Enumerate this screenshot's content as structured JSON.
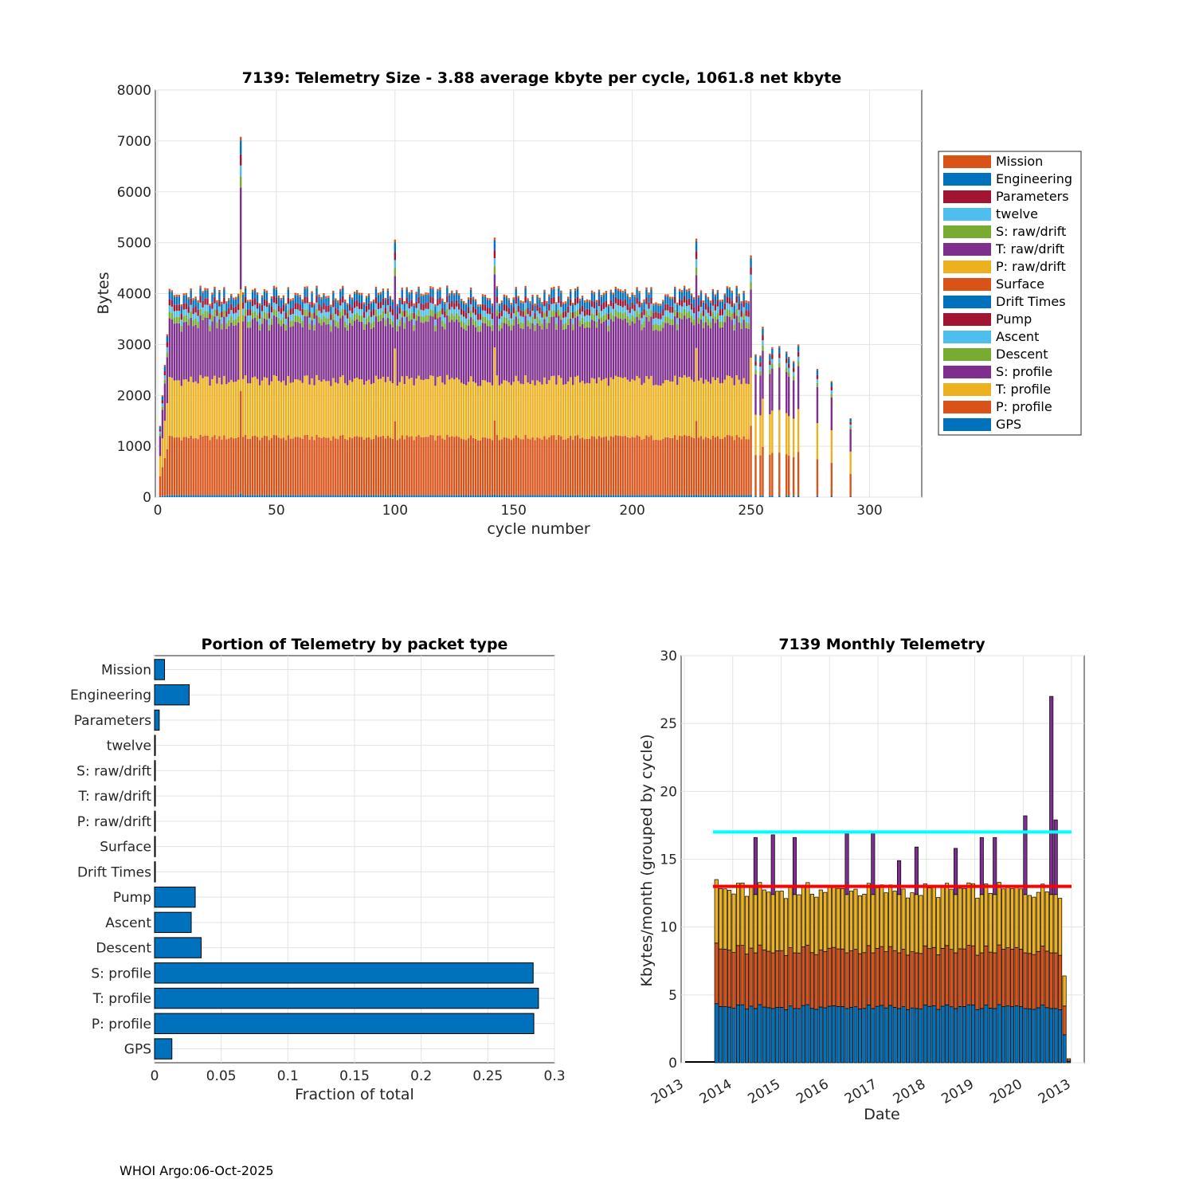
{
  "colors": {
    "Mission": "#D95319",
    "Engineering": "#0072BD",
    "Parameters": "#A2142F",
    "twelve": "#4DBEEE",
    "S: raw/drift": "#77AC30",
    "T: raw/drift": "#7E2F8E",
    "P: raw/drift": "#EDB120",
    "Surface": "#D95319",
    "Drift Times": "#0072BD",
    "Pump": "#A2142F",
    "Ascent": "#4DBEEE",
    "Descent": "#77AC30",
    "S: profile": "#7E2F8E",
    "T: profile": "#EDB120",
    "P: profile": "#D95319",
    "GPS": "#0072BD",
    "bar_fill": "#0072BD",
    "ref_cyan": "#00FFFF",
    "ref_red": "#FF0000"
  },
  "chart_data": [
    {
      "type": "bar",
      "stacked": true,
      "title": "7139: Telemetry Size - 3.88 average kbyte per cycle, 1061.8 net kbyte",
      "xlabel": "cycle number",
      "ylabel": "Bytes",
      "xlim": [
        -1,
        322
      ],
      "ylim": [
        0,
        8000
      ],
      "xticks": [
        0,
        50,
        100,
        150,
        200,
        250,
        300
      ],
      "yticks": [
        0,
        1000,
        2000,
        3000,
        4000,
        5000,
        6000,
        7000,
        8000
      ],
      "grid": true,
      "legend_position": "right",
      "legend": [
        "Mission",
        "Engineering",
        "Parameters",
        "twelve",
        "S: raw/drift",
        "T: raw/drift",
        "P: raw/drift",
        "Surface",
        "Drift Times",
        "Pump",
        "Ascent",
        "Descent",
        "S: profile",
        "T: profile",
        "P: profile",
        "GPS"
      ],
      "typical_profile_cycle_segments": [
        {
          "name": "GPS",
          "value": 40
        },
        {
          "name": "P: profile",
          "value": 1110
        },
        {
          "name": "T: profile",
          "value": 1100
        },
        {
          "name": "S: profile",
          "value": 1100
        },
        {
          "name": "Descent",
          "value": 120
        },
        {
          "name": "Ascent",
          "value": 120
        },
        {
          "name": "Pump",
          "value": 120
        },
        {
          "name": "Engineering",
          "value": 150
        },
        {
          "name": "Mission",
          "value": 40
        }
      ],
      "cycle_range": [
        1,
        293
      ],
      "notable_totals": [
        {
          "cycle": 35,
          "total": 7080
        },
        {
          "cycle": 100,
          "total": 5060
        },
        {
          "cycle": 142,
          "total": 5100
        },
        {
          "cycle": 227,
          "total": 5080
        },
        {
          "cycle": 250,
          "total": 4750
        },
        {
          "cycle": 255,
          "total": 3350
        },
        {
          "cycle": 270,
          "total": 3000
        },
        {
          "cycle": 278,
          "total": 2520
        },
        {
          "cycle": 284,
          "total": 2280
        },
        {
          "cycle": 292,
          "total": 1550
        }
      ]
    },
    {
      "type": "bar",
      "orientation": "horizontal",
      "title": "Portion of Telemetry by packet type",
      "xlabel": "Fraction of total",
      "ylabel": "",
      "xlim": [
        0,
        0.3
      ],
      "xticks": [
        0,
        0.05,
        0.1,
        0.15,
        0.2,
        0.25,
        0.3
      ],
      "xtick_labels": [
        "0",
        "0.05",
        "0.1",
        "0.15",
        "0.2",
        "0.25",
        "0.3"
      ],
      "grid": true,
      "categories": [
        "Mission",
        "Engineering",
        "Parameters",
        "twelve",
        "S: raw/drift",
        "T: raw/drift",
        "P: raw/drift",
        "Surface",
        "Drift Times",
        "Pump",
        "Ascent",
        "Descent",
        "S: profile",
        "T: profile",
        "P: profile",
        "GPS"
      ],
      "values": [
        0.0075,
        0.026,
        0.0035,
        0.0005,
        0.0005,
        0.0005,
        0.0005,
        0.0005,
        0.0005,
        0.0305,
        0.0275,
        0.035,
        0.284,
        0.288,
        0.2845,
        0.013
      ]
    },
    {
      "type": "bar",
      "stacked": true,
      "title": "7139 Monthly Telemetry",
      "xlabel": "Date",
      "ylabel": "Kbytes/month (grouped by cycle)",
      "ylim": [
        0,
        30
      ],
      "yticks": [
        0,
        5,
        10,
        15,
        20,
        25,
        30
      ],
      "xtick_labels": [
        "2013",
        "2014",
        "2015",
        "2016",
        "2017",
        "2018",
        "2019",
        "2020",
        "2013"
      ],
      "grid": true,
      "months": 89,
      "first_data_month": 7,
      "reference_lines": [
        {
          "color": "cyan",
          "value": 17
        },
        {
          "color": "red",
          "value": 13
        }
      ],
      "typical_month_segments": [
        {
          "name": "GPS/Engineering",
          "value": 4.0
        },
        {
          "name": "P: profile",
          "value": 4.1
        },
        {
          "name": "T: profile",
          "value": 4.3
        },
        {
          "name": "S: profile",
          "value": 0.0
        }
      ],
      "notable_totals": [
        {
          "month": 7,
          "total": 13.5
        },
        {
          "month": 16,
          "total": 16.6
        },
        {
          "month": 20,
          "total": 16.8
        },
        {
          "month": 25,
          "total": 16.6
        },
        {
          "month": 37,
          "total": 16.9
        },
        {
          "month": 43,
          "total": 16.9
        },
        {
          "month": 49,
          "total": 14.9
        },
        {
          "month": 53,
          "total": 15.9
        },
        {
          "month": 62,
          "total": 15.8
        },
        {
          "month": 68,
          "total": 16.6
        },
        {
          "month": 71,
          "total": 16.6
        },
        {
          "month": 78,
          "total": 18.2
        },
        {
          "month": 84,
          "total": 27.0
        },
        {
          "month": 85,
          "total": 17.9
        },
        {
          "month": 87,
          "total": 6.4
        }
      ]
    }
  ],
  "footer": "WHOI Argo:06-Oct-2025"
}
